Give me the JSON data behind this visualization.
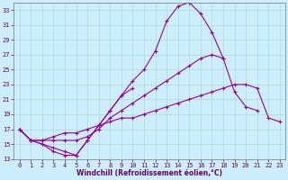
{
  "xlabel": "Windchill (Refroidissement éolien,°C)",
  "bg_color": "#cceeff",
  "grid_color": "#aaddcc",
  "line_color": "#990099",
  "xlim": [
    -0.5,
    23.5
  ],
  "ylim": [
    13,
    34
  ],
  "xticks": [
    0,
    1,
    2,
    3,
    4,
    5,
    6,
    7,
    8,
    9,
    10,
    11,
    12,
    13,
    14,
    15,
    16,
    17,
    18,
    19,
    20,
    21,
    22,
    23
  ],
  "yticks": [
    13,
    15,
    17,
    19,
    21,
    23,
    25,
    27,
    29,
    31,
    33
  ],
  "series": [
    {
      "x": [
        0,
        1,
        2,
        3,
        4,
        5,
        6,
        7,
        8,
        9,
        10,
        11,
        12,
        13,
        14,
        15,
        16,
        17,
        18
      ],
      "y": [
        17.0,
        15.5,
        15.0,
        14.0,
        13.5,
        13.5,
        15.5,
        17.5,
        19.5,
        21.5,
        23.5,
        25.0,
        27.5,
        31.5,
        33.5,
        34.0,
        32.5,
        30.0,
        26.5
      ]
    },
    {
      "x": [
        0,
        1,
        2,
        3,
        4,
        5,
        6,
        7,
        8,
        9,
        10
      ],
      "y": [
        17.0,
        15.5,
        15.0,
        14.5,
        14.0,
        13.5,
        15.5,
        17.5,
        19.5,
        21.5,
        22.5
      ]
    },
    {
      "x": [
        0,
        1,
        2,
        3,
        4,
        5,
        6,
        7,
        8,
        9,
        10,
        11,
        12,
        13,
        14,
        15,
        16,
        17,
        18,
        19,
        20,
        21
      ],
      "y": [
        17.0,
        15.5,
        15.5,
        15.5,
        15.5,
        15.5,
        16.0,
        17.0,
        18.5,
        19.5,
        20.5,
        21.5,
        22.5,
        23.5,
        24.5,
        25.5,
        26.5,
        27.0,
        26.5,
        22.0,
        20.0,
        19.5
      ]
    },
    {
      "x": [
        0,
        1,
        2,
        3,
        4,
        5,
        6,
        7,
        8,
        9,
        10,
        11,
        12,
        13,
        14,
        15,
        16,
        17,
        18,
        19,
        20,
        21,
        22,
        23
      ],
      "y": [
        17.0,
        15.5,
        15.5,
        16.0,
        16.5,
        16.5,
        17.0,
        17.5,
        18.0,
        18.5,
        18.5,
        19.0,
        19.5,
        20.0,
        20.5,
        21.0,
        21.5,
        22.0,
        22.5,
        23.0,
        23.0,
        22.5,
        18.5,
        18.0
      ]
    }
  ]
}
